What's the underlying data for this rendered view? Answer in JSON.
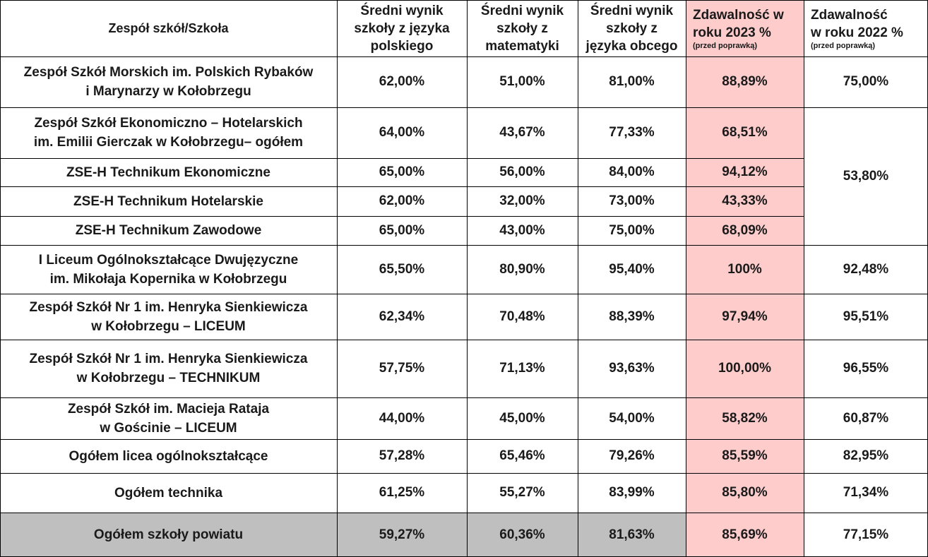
{
  "header": {
    "school": "Zespół szkół/Szkoła",
    "polish": [
      "Średni wynik",
      "szkoły z języka",
      "polskiego"
    ],
    "math": [
      "Średni wynik",
      "szkoły z",
      "matematyki"
    ],
    "foreign": [
      "Średni wynik",
      "szkoły z",
      "języka obcego"
    ],
    "pass2023": [
      "Zdawalność w",
      "roku 2023 %"
    ],
    "pass2023_note": "(przed poprawką)",
    "pass2022": [
      "Zdawalność",
      "w roku 2022  %"
    ],
    "pass2022_note": "(przed poprawką)"
  },
  "rows": [
    {
      "name": [
        "Zespół Szkół Morskich im. Polskich Rybaków",
        "i Marynarzy w Kołobrzegu"
      ],
      "polish": "62,00%",
      "math": "51,00%",
      "foreign": "81,00%",
      "pass2023": "88,89%",
      "pass2022": "75,00%"
    },
    {
      "name": [
        "Zespół Szkół Ekonomiczno – Hotelarskich",
        "im. Emilii Gierczak w Kołobrzegu– ogółem"
      ],
      "polish": "64,00%",
      "math": "43,67%",
      "foreign": "77,33%",
      "pass2023": "68,51%"
    },
    {
      "name": [
        "ZSE-H Technikum Ekonomiczne"
      ],
      "polish": "65,00%",
      "math": "56,00%",
      "foreign": "84,00%",
      "pass2023": "94,12%"
    },
    {
      "name": [
        "ZSE-H Technikum Hotelarskie"
      ],
      "polish": "62,00%",
      "math": "32,00%",
      "foreign": "73,00%",
      "pass2023": "43,33%"
    },
    {
      "name": [
        "ZSE-H Technikum Zawodowe"
      ],
      "polish": "65,00%",
      "math": "43,00%",
      "foreign": "75,00%",
      "pass2023": "68,09%"
    },
    {
      "name": [
        "I Liceum Ogólnokształcące Dwujęzyczne",
        "im. Mikołaja Kopernika w Kołobrzegu"
      ],
      "polish": "65,50%",
      "math": "80,90%",
      "foreign": "95,40%",
      "pass2023": "100%",
      "pass2022": "92,48%"
    },
    {
      "name": [
        "Zespół Szkół Nr 1 im. Henryka Sienkiewicza",
        "w Kołobrzegu – LICEUM"
      ],
      "polish": "62,34%",
      "math": "70,48%",
      "foreign": "88,39%",
      "pass2023": "97,94%",
      "pass2022": "95,51%"
    },
    {
      "name": [
        "Zespół Szkół Nr 1 im. Henryka Sienkiewicza",
        "w Kołobrzegu – TECHNIKUM"
      ],
      "polish": "57,75%",
      "math": "71,13%",
      "foreign": "93,63%",
      "pass2023": "100,00%",
      "pass2022": "96,55%"
    },
    {
      "name": [
        "Zespół Szkół im. Macieja Rataja",
        "w Gościnie – LICEUM"
      ],
      "polish": "44,00%",
      "math": "45,00%",
      "foreign": "54,00%",
      "pass2023": "58,82%",
      "pass2022": "60,87%"
    },
    {
      "name": [
        "Ogółem licea ogólnokształcące"
      ],
      "polish": "57,28%",
      "math": "65,46%",
      "foreign": "79,26%",
      "pass2023": "85,59%",
      "pass2022": "82,95%"
    },
    {
      "name": [
        "Ogółem technika"
      ],
      "polish": "61,25%",
      "math": "55,27%",
      "foreign": "83,99%",
      "pass2023": "85,80%",
      "pass2022": "71,34%"
    },
    {
      "name": [
        "Ogółem szkoły powiatu"
      ],
      "polish": "59,27%",
      "math": "60,36%",
      "foreign": "81,63%",
      "pass2023": "85,69%",
      "pass2022": "77,15%"
    }
  ],
  "merged_pass2022_zseh": "53,80%",
  "colors": {
    "highlight_2023": "#ffcccc",
    "total_row": "#bfbfbf",
    "border": "#000000"
  }
}
